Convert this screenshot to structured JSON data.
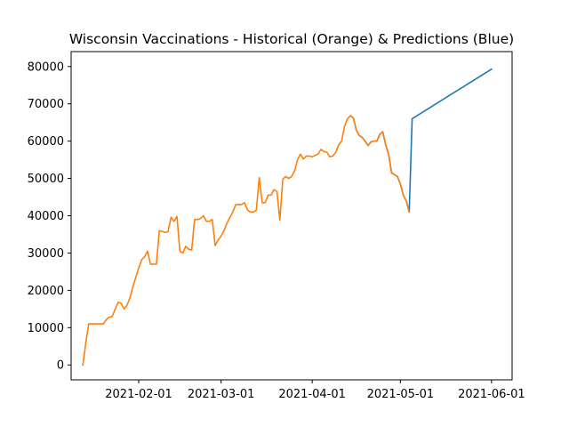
{
  "chart_data": {
    "type": "line",
    "title": "Wisconsin Vaccinations - Historical (Orange) & Predictions (Blue)",
    "xlabel": "",
    "ylabel": "",
    "xlim": [
      "2021-01-09",
      "2021-06-08"
    ],
    "ylim": [
      -4000,
      84000
    ],
    "grid": false,
    "x_ticks": [
      "2021-02-01",
      "2021-03-01",
      "2021-04-01",
      "2021-05-01",
      "2021-06-01"
    ],
    "y_ticks": [
      0,
      10000,
      20000,
      30000,
      40000,
      50000,
      60000,
      70000,
      80000
    ],
    "colors": {
      "historical": "#ff7f0e",
      "prediction": "#1f77b4"
    },
    "series": [
      {
        "key": "prediction",
        "color": "#1f77b4",
        "points": [
          [
            "2021-04-14",
            66800
          ],
          [
            "2021-04-15",
            66200
          ],
          [
            "2021-04-16",
            63000
          ],
          [
            "2021-04-17",
            61500
          ],
          [
            "2021-04-18",
            61000
          ],
          [
            "2021-04-19",
            60000
          ],
          [
            "2021-04-20",
            58800
          ],
          [
            "2021-04-21",
            59800
          ],
          [
            "2021-04-22",
            60000
          ],
          [
            "2021-04-23",
            60000
          ],
          [
            "2021-04-24",
            61800
          ],
          [
            "2021-04-25",
            62500
          ],
          [
            "2021-04-26",
            59000
          ],
          [
            "2021-04-27",
            56500
          ],
          [
            "2021-04-28",
            51500
          ],
          [
            "2021-04-29",
            51000
          ],
          [
            "2021-04-30",
            50500
          ],
          [
            "2021-05-01",
            48500
          ],
          [
            "2021-05-02",
            45500
          ],
          [
            "2021-05-03",
            44000
          ],
          [
            "2021-05-04",
            41000
          ],
          [
            "2021-05-05",
            66000
          ],
          [
            "2021-06-01",
            79300
          ]
        ]
      },
      {
        "key": "historical",
        "color": "#ff7f0e",
        "points": [
          [
            "2021-01-13",
            0
          ],
          [
            "2021-01-14",
            6000
          ],
          [
            "2021-01-15",
            11000
          ],
          [
            "2021-01-16",
            11000
          ],
          [
            "2021-01-17",
            11000
          ],
          [
            "2021-01-18",
            11000
          ],
          [
            "2021-01-19",
            11000
          ],
          [
            "2021-01-20",
            11000
          ],
          [
            "2021-01-21",
            12200
          ],
          [
            "2021-01-22",
            12800
          ],
          [
            "2021-01-23",
            13000
          ],
          [
            "2021-01-24",
            15000
          ],
          [
            "2021-01-25",
            16800
          ],
          [
            "2021-01-26",
            16500
          ],
          [
            "2021-01-27",
            15000
          ],
          [
            "2021-01-28",
            16000
          ],
          [
            "2021-01-29",
            18000
          ],
          [
            "2021-01-30",
            21000
          ],
          [
            "2021-01-31",
            23500
          ],
          [
            "2021-02-01",
            26000
          ],
          [
            "2021-02-02",
            28200
          ],
          [
            "2021-02-03",
            29000
          ],
          [
            "2021-02-04",
            30500
          ],
          [
            "2021-02-05",
            27000
          ],
          [
            "2021-02-06",
            27000
          ],
          [
            "2021-02-07",
            27000
          ],
          [
            "2021-02-08",
            36000
          ],
          [
            "2021-02-09",
            35800
          ],
          [
            "2021-02-10",
            35500
          ],
          [
            "2021-02-11",
            35800
          ],
          [
            "2021-02-12",
            39600
          ],
          [
            "2021-02-13",
            38500
          ],
          [
            "2021-02-14",
            39800
          ],
          [
            "2021-02-15",
            30500
          ],
          [
            "2021-02-16",
            30000
          ],
          [
            "2021-02-17",
            31800
          ],
          [
            "2021-02-18",
            31000
          ],
          [
            "2021-02-19",
            30800
          ],
          [
            "2021-02-20",
            39000
          ],
          [
            "2021-02-21",
            39000
          ],
          [
            "2021-02-22",
            39200
          ],
          [
            "2021-02-23",
            40000
          ],
          [
            "2021-02-24",
            38500
          ],
          [
            "2021-02-25",
            38500
          ],
          [
            "2021-02-26",
            39000
          ],
          [
            "2021-02-27",
            32000
          ],
          [
            "2021-02-28",
            33500
          ],
          [
            "2021-03-01",
            34500
          ],
          [
            "2021-03-02",
            36000
          ],
          [
            "2021-03-03",
            38000
          ],
          [
            "2021-03-04",
            39500
          ],
          [
            "2021-03-05",
            41000
          ],
          [
            "2021-03-06",
            43000
          ],
          [
            "2021-03-07",
            43000
          ],
          [
            "2021-03-08",
            43000
          ],
          [
            "2021-03-09",
            43500
          ],
          [
            "2021-03-10",
            41500
          ],
          [
            "2021-03-11",
            41000
          ],
          [
            "2021-03-12",
            41000
          ],
          [
            "2021-03-13",
            41500
          ],
          [
            "2021-03-14",
            50200
          ],
          [
            "2021-03-15",
            43500
          ],
          [
            "2021-03-16",
            43500
          ],
          [
            "2021-03-17",
            45500
          ],
          [
            "2021-03-18",
            45500
          ],
          [
            "2021-03-19",
            47000
          ],
          [
            "2021-03-20",
            46500
          ],
          [
            "2021-03-21",
            38800
          ],
          [
            "2021-03-22",
            49800
          ],
          [
            "2021-03-23",
            50500
          ],
          [
            "2021-03-24",
            50000
          ],
          [
            "2021-03-25",
            50500
          ],
          [
            "2021-03-26",
            52000
          ],
          [
            "2021-03-27",
            55000
          ],
          [
            "2021-03-28",
            56500
          ],
          [
            "2021-03-29",
            55200
          ],
          [
            "2021-03-30",
            56000
          ],
          [
            "2021-03-31",
            56000
          ],
          [
            "2021-04-01",
            55800
          ],
          [
            "2021-04-02",
            56200
          ],
          [
            "2021-04-03",
            56500
          ],
          [
            "2021-04-04",
            57800
          ],
          [
            "2021-04-05",
            57200
          ],
          [
            "2021-04-06",
            57000
          ],
          [
            "2021-04-07",
            55800
          ],
          [
            "2021-04-08",
            56000
          ],
          [
            "2021-04-09",
            57000
          ],
          [
            "2021-04-10",
            59000
          ],
          [
            "2021-04-11",
            60000
          ],
          [
            "2021-04-12",
            64000
          ],
          [
            "2021-04-13",
            66000
          ],
          [
            "2021-04-14",
            66800
          ],
          [
            "2021-04-15",
            66200
          ],
          [
            "2021-04-16",
            63000
          ],
          [
            "2021-04-17",
            61500
          ],
          [
            "2021-04-18",
            61000
          ],
          [
            "2021-04-19",
            60000
          ],
          [
            "2021-04-20",
            58800
          ],
          [
            "2021-04-21",
            59800
          ],
          [
            "2021-04-22",
            60000
          ],
          [
            "2021-04-23",
            60000
          ],
          [
            "2021-04-24",
            61800
          ],
          [
            "2021-04-25",
            62500
          ],
          [
            "2021-04-26",
            59000
          ],
          [
            "2021-04-27",
            56500
          ],
          [
            "2021-04-28",
            51500
          ],
          [
            "2021-04-29",
            51000
          ],
          [
            "2021-04-30",
            50500
          ],
          [
            "2021-05-01",
            48500
          ],
          [
            "2021-05-02",
            45500
          ],
          [
            "2021-05-03",
            44000
          ],
          [
            "2021-05-04",
            41000
          ]
        ]
      }
    ]
  }
}
